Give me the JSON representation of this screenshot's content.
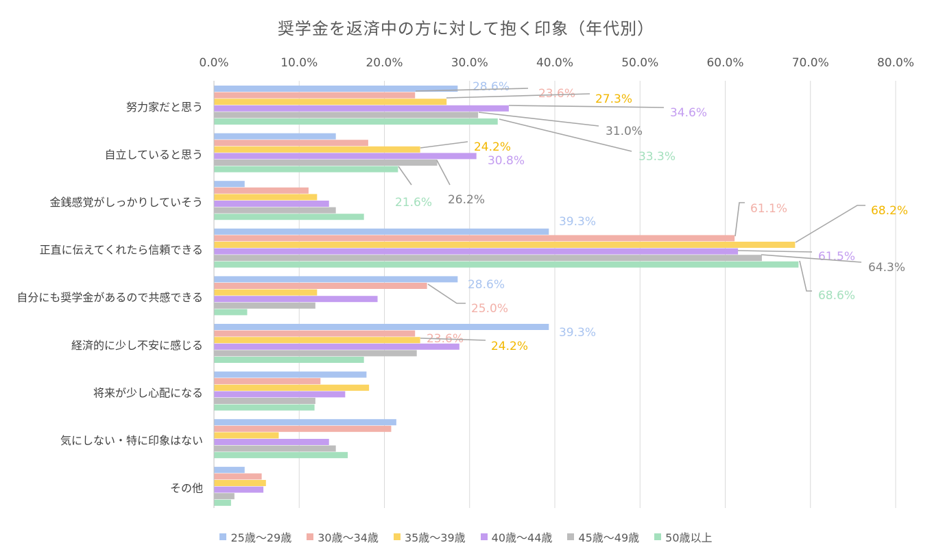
{
  "chart_data": {
    "type": "bar",
    "orientation": "horizontal",
    "title": "奨学金を返済中の方に対して抱く印象（年代別）",
    "xlim": [
      0,
      80
    ],
    "x_ticks": [
      "0.0%",
      "10.0%",
      "20.0%",
      "30.0%",
      "40.0%",
      "50.0%",
      "60.0%",
      "70.0%",
      "80.0%"
    ],
    "grid": true,
    "legend_position": "bottom",
    "categories": [
      "努力家だと思う",
      "自立していると思う",
      "金銭感覚がしっかりしていそう",
      "正直に伝えてくれたら信頼できる",
      "自分にも奨学金があるので共感できる",
      "経済的に少し不安に感じる",
      "将来が少し心配になる",
      "気にしない・特に印象はない",
      "その他"
    ],
    "series": [
      {
        "name": "25歳～29歳",
        "color": "#a9c4f0",
        "values": [
          28.6,
          14.3,
          3.6,
          39.3,
          28.6,
          39.3,
          17.9,
          21.4,
          3.6
        ]
      },
      {
        "name": "30歳～34歳",
        "color": "#f2b0a8",
        "values": [
          23.6,
          18.1,
          11.1,
          61.1,
          25.0,
          23.6,
          12.5,
          20.8,
          5.6
        ]
      },
      {
        "name": "35歳～39歳",
        "color": "#fbd461",
        "values": [
          27.3,
          24.2,
          12.1,
          68.2,
          12.1,
          24.2,
          18.2,
          7.6,
          6.1
        ]
      },
      {
        "name": "40歳～44歳",
        "color": "#c39cf0",
        "values": [
          34.6,
          30.8,
          13.5,
          61.5,
          19.2,
          28.8,
          15.4,
          13.5,
          5.8
        ]
      },
      {
        "name": "45歳～49歳",
        "color": "#bdbdbd",
        "values": [
          31.0,
          26.2,
          14.3,
          64.3,
          11.9,
          23.8,
          11.9,
          14.3,
          2.4
        ]
      },
      {
        "name": "50歳以上",
        "color": "#a4e0bd",
        "values": [
          33.3,
          21.6,
          17.6,
          68.6,
          3.9,
          17.6,
          11.8,
          15.7,
          2.0
        ]
      }
    ],
    "data_labels": [
      {
        "category": 0,
        "series": 0,
        "text": "28.6%"
      },
      {
        "category": 0,
        "series": 1,
        "text": "23.6%"
      },
      {
        "category": 0,
        "series": 2,
        "text": "27.3%"
      },
      {
        "category": 0,
        "series": 3,
        "text": "34.6%"
      },
      {
        "category": 0,
        "series": 4,
        "text": "31.0%"
      },
      {
        "category": 0,
        "series": 5,
        "text": "33.3%"
      },
      {
        "category": 1,
        "series": 2,
        "text": "24.2%"
      },
      {
        "category": 1,
        "series": 3,
        "text": "30.8%"
      },
      {
        "category": 1,
        "series": 4,
        "text": "26.2%"
      },
      {
        "category": 1,
        "series": 5,
        "text": "21.6%"
      },
      {
        "category": 3,
        "series": 0,
        "text": "39.3%"
      },
      {
        "category": 3,
        "series": 1,
        "text": "61.1%"
      },
      {
        "category": 3,
        "series": 2,
        "text": "68.2%"
      },
      {
        "category": 3,
        "series": 3,
        "text": "61.5%"
      },
      {
        "category": 3,
        "series": 4,
        "text": "64.3%"
      },
      {
        "category": 3,
        "series": 5,
        "text": "68.6%"
      },
      {
        "category": 4,
        "series": 0,
        "text": "28.6%"
      },
      {
        "category": 4,
        "series": 1,
        "text": "25.0%"
      },
      {
        "category": 5,
        "series": 0,
        "text": "39.3%"
      },
      {
        "category": 5,
        "series": 1,
        "text": "23.6%"
      },
      {
        "category": 5,
        "series": 2,
        "text": "24.2%"
      }
    ]
  }
}
